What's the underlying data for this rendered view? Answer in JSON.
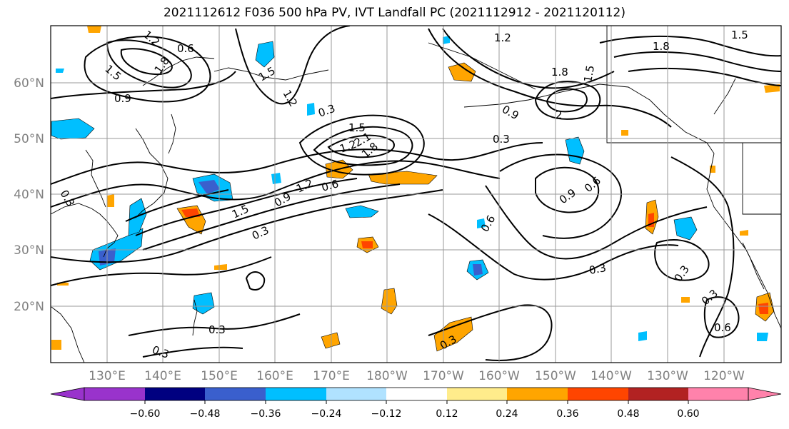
{
  "title": "2021112612 F036 500 hPa PV, IVT Landfall PC (2021112912 - 2021120112)",
  "map": {
    "lat_labels": [
      "60°N",
      "50°N",
      "40°N",
      "30°N",
      "20°N"
    ],
    "lon_labels": [
      "130°E",
      "140°E",
      "150°E",
      "160°E",
      "170°E",
      "180°W",
      "170°W",
      "160°W",
      "150°W",
      "140°W",
      "130°W",
      "120°W"
    ],
    "contour_labels": [
      "0.6",
      "1.2",
      "1.5",
      "1.8",
      "0.9",
      "1.5",
      "1.2",
      "1.8",
      "2.1",
      "1.5",
      "1.2",
      "0.3",
      "0.3",
      "0.3",
      "0.6",
      "0.9",
      "1.2",
      "1.5",
      "0.3",
      "0.9",
      "0.6",
      "0.6",
      "0.3",
      "0.3",
      "0.3",
      "0.3",
      "0.3",
      "0.3",
      "0.6",
      "1.8",
      "1.5",
      "2",
      "1.2",
      "0.9",
      "1.8",
      "1.5"
    ]
  },
  "colorbar": {
    "tick_labels": [
      "−0.60",
      "−0.48",
      "−0.36",
      "−0.24",
      "−0.12",
      "0.12",
      "0.24",
      "0.36",
      "0.48",
      "0.60"
    ],
    "colors": [
      "#9933cc",
      "#000080",
      "#3a5fcd",
      "#00bfff",
      "#b0e2ff",
      "#ffffff",
      "#ffec8b",
      "#ffa500",
      "#ff4500",
      "#b22222",
      "#ff82ab"
    ]
  }
}
